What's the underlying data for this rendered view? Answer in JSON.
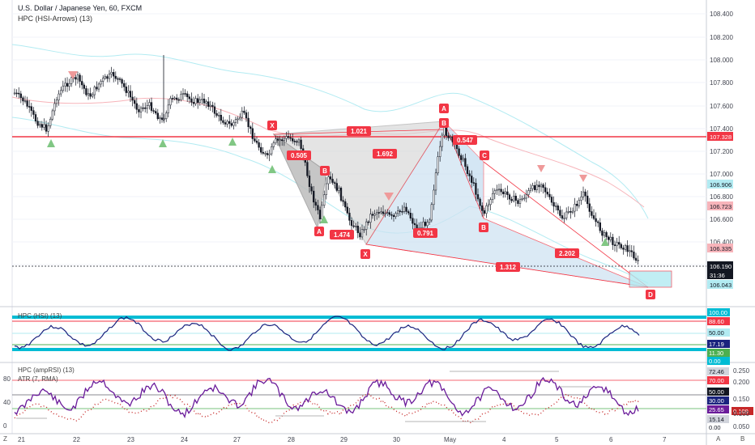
{
  "header": {
    "symbol_title": "U.S. Dollar / Japanese Yen, 60, FXCM",
    "indicator1": "HPC (HSI-Arrows) (13)",
    "panel2_title": "HPC (HSI) (13)",
    "panel3_title1": "HPC (ampRSI) (13)",
    "panel3_title2": "ATR (7, RMA)"
  },
  "price_axis": {
    "ticks": [
      "108.400",
      "108.200",
      "108.000",
      "107.800",
      "107.600",
      "107.400",
      "107.200",
      "107.000",
      "106.800",
      "106.600",
      "106.400",
      "106.200"
    ],
    "badges": [
      {
        "label": "107.328",
        "bg": "#f23645",
        "fg": "#ffffff"
      },
      {
        "label": "106.906",
        "bg": "#b2ebf2",
        "fg": "#131722"
      },
      {
        "label": "106.723",
        "bg": "#f7b4ba",
        "fg": "#131722"
      },
      {
        "label": "106.335",
        "bg": "#f7b4ba",
        "fg": "#131722"
      },
      {
        "label": "106.190",
        "bg": "#131722",
        "fg": "#ffffff"
      },
      {
        "label": "31:36",
        "bg": "#131722",
        "fg": "#ffffff"
      },
      {
        "label": "106.043",
        "bg": "#b2ebf2",
        "fg": "#131722"
      }
    ]
  },
  "hsi_axis": {
    "badges": [
      {
        "label": "100.00",
        "bg": "#00bcd4",
        "fg": "#ffffff"
      },
      {
        "label": "88.60",
        "bg": "#f23645",
        "fg": "#ffffff"
      },
      {
        "label": "50.00",
        "bg": "#b2ebf2",
        "fg": "#131722"
      },
      {
        "label": "17.19",
        "bg": "#1a237e",
        "fg": "#ffffff"
      },
      {
        "label": "11.30",
        "bg": "#4caf50",
        "fg": "#ffffff"
      },
      {
        "label": "0.00",
        "bg": "#00bcd4",
        "fg": "#ffffff"
      }
    ]
  },
  "rsi_axis": {
    "left_ticks": [
      "80",
      "40",
      "0"
    ],
    "right_ticks": [
      "0.250",
      "0.200",
      "0.150",
      "0.100",
      "0.050"
    ],
    "badges": [
      {
        "label": "72.46",
        "bg": "#d1d4dc",
        "fg": "#131722"
      },
      {
        "label": "70.00",
        "bg": "#f23645",
        "fg": "#ffffff"
      },
      {
        "label": "50.00",
        "bg": "#131722",
        "fg": "#ffffff"
      },
      {
        "label": "30.00",
        "bg": "#1a237e",
        "fg": "#ffffff"
      },
      {
        "label": "25.65",
        "bg": "#6a1b9a",
        "fg": "#ffffff"
      },
      {
        "label": "15.14",
        "bg": "#d1d4dc",
        "fg": "#131722"
      },
      {
        "label": "0.109",
        "bg": "#c62828",
        "fg": "#ffffff"
      },
      {
        "label": "0.00",
        "bg": "#ffffff",
        "fg": "#131722"
      }
    ]
  },
  "time_axis": {
    "ticks": [
      "21",
      "22",
      "23",
      "24",
      "27",
      "28",
      "29",
      "30",
      "May",
      "4",
      "5",
      "6",
      "7"
    ]
  },
  "pattern": {
    "points": [
      "X",
      "A",
      "B",
      "C",
      "D"
    ],
    "ratios": [
      "1.021",
      "0.505",
      "1.692",
      "1.474",
      "0.547",
      "0.791",
      "2.202",
      "1.312"
    ],
    "colors": {
      "bullish_fill": "#cfe3f2",
      "bearish_fill": "#9e9e9e",
      "label": "#f23645"
    }
  },
  "corners": {
    "bottom_left": "Z",
    "bottom_right_a": "A",
    "bottom_right_b": "B"
  }
}
